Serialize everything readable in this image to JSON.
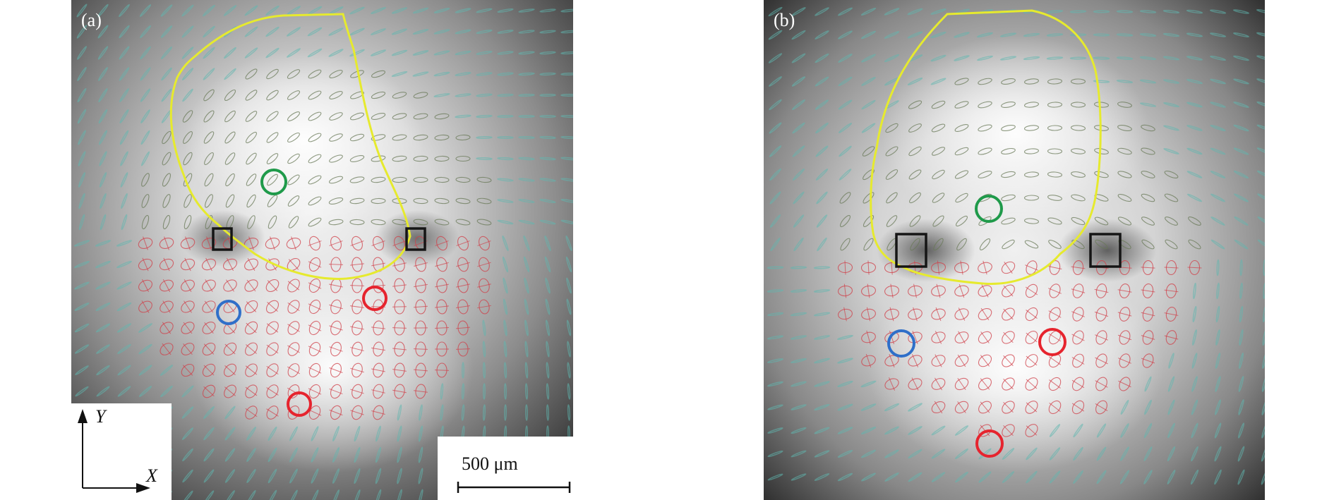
{
  "panels": [
    {
      "label": "(a)"
    },
    {
      "label": "(b)"
    }
  ],
  "axes": {
    "x_label": "X",
    "y_label": "Y"
  },
  "scale_bar": {
    "label": "500 μm"
  },
  "colors": {
    "boundary": "#e6ea2e",
    "marker_green": "#1f9a4a",
    "marker_blue": "#2f6fc9",
    "marker_red": "#e6242e",
    "marker_box": "#151515",
    "ellipse_upper": "#6a7a58",
    "ellipse_lower": "#d0404a",
    "line_teal": "#5fb8b0"
  }
}
